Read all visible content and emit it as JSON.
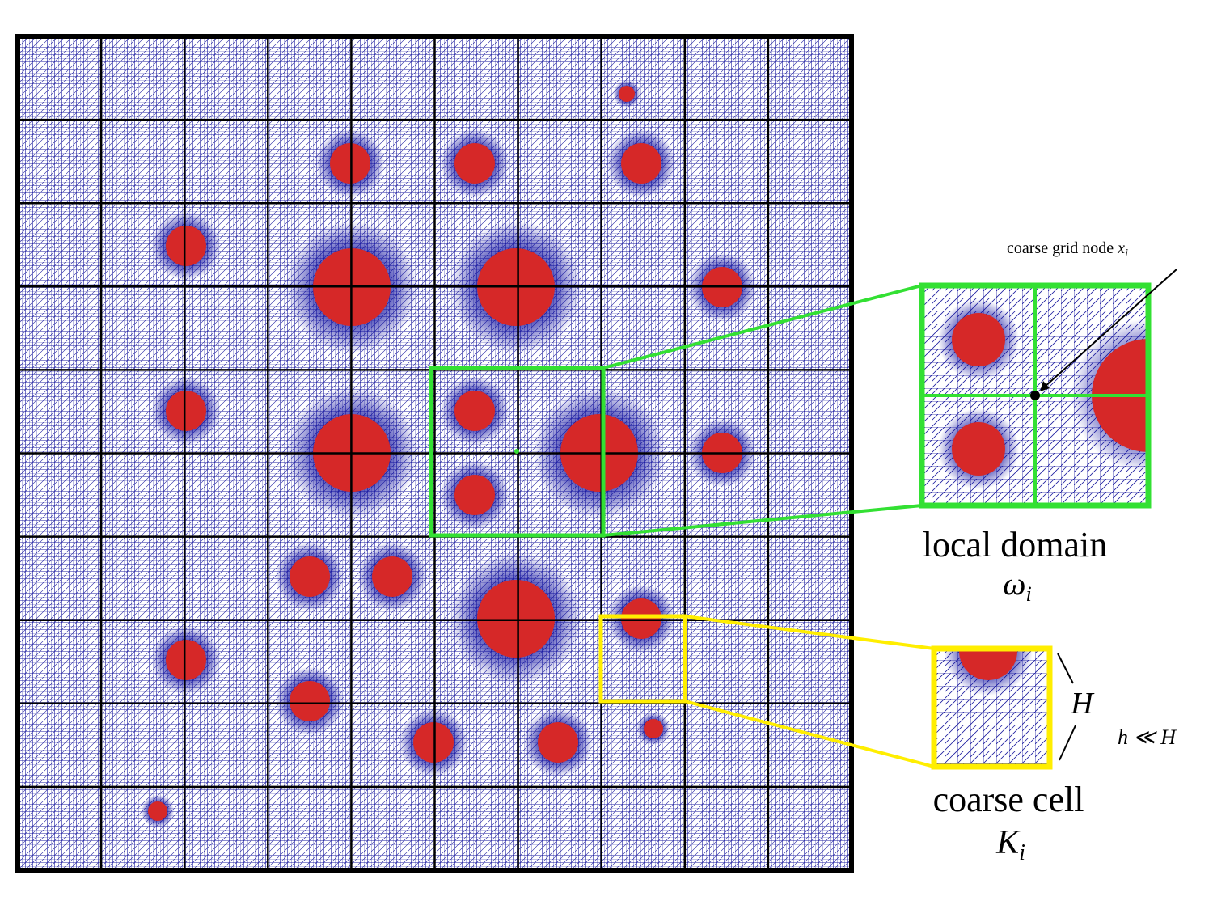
{
  "labels": {
    "node": {
      "text": "coarse grid node",
      "symbol": "x",
      "index": "i"
    },
    "local_domain": {
      "text": "local domain",
      "symbol": "ω",
      "index": "i"
    },
    "coarse_cell": {
      "text": "coarse cell",
      "symbol": "K",
      "index": "i"
    },
    "cell_size": "H",
    "scale_relation": "h ≪ H"
  }
}
